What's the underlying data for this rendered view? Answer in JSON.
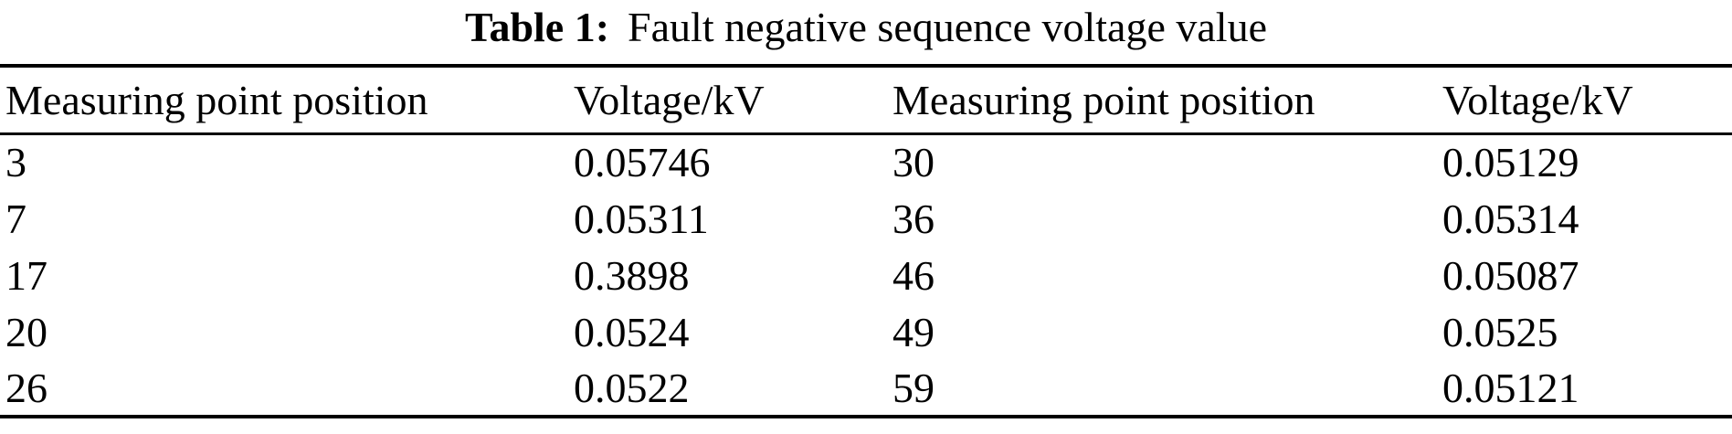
{
  "caption": {
    "label": "Table 1:",
    "text": "Fault negative sequence voltage value"
  },
  "table": {
    "headers": [
      "Measuring point position",
      "Voltage/kV",
      "Measuring point position",
      "Voltage/kV"
    ],
    "rows": [
      [
        "3",
        "0.05746",
        "30",
        "0.05129"
      ],
      [
        "7",
        "0.05311",
        "36",
        "0.05314"
      ],
      [
        "17",
        "0.3898",
        "46",
        "0.05087"
      ],
      [
        "20",
        "0.0524",
        "49",
        "0.0525"
      ],
      [
        "26",
        "0.0522",
        "59",
        "0.05121"
      ]
    ]
  },
  "colors": {
    "text": "#000000",
    "background": "#ffffff",
    "rule": "#000000"
  }
}
